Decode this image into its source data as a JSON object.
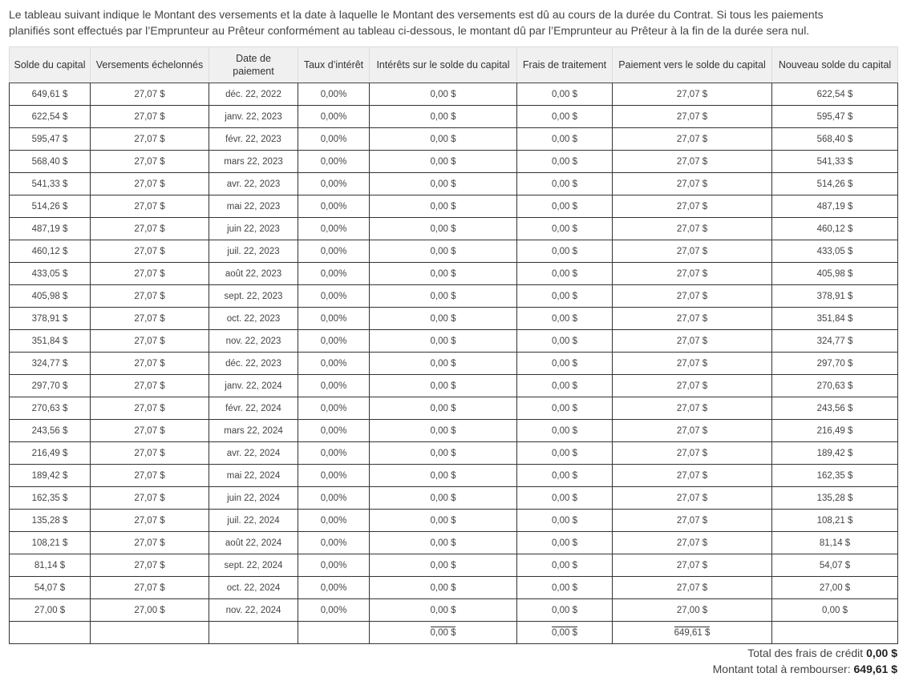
{
  "intro": {
    "line1": "Le tableau suivant indique le Montant des versements et la date à laquelle le Montant des versements est dû au cours de la durée du Contrat. Si tous les paiements",
    "line2": "planifiés sont effectués par l’Emprunteur au Prêteur conformément au tableau ci-dessous, le montant dû par l’Emprunteur au Prêteur à la fin de la durée sera nul."
  },
  "table": {
    "headers": [
      "Solde du capital",
      "Versements échelonnés",
      "Date de paiement",
      "Taux d’intérêt",
      "Intérêts sur le solde du capital",
      "Frais de traitement",
      "Paiement vers le solde du capital",
      "Nouveau solde du capital"
    ],
    "rows": [
      [
        "649,61 $",
        "27,07 $",
        "déc. 22, 2022",
        "0,00%",
        "0,00 $",
        "0,00 $",
        "27,07 $",
        "622,54 $"
      ],
      [
        "622,54 $",
        "27,07 $",
        "janv. 22, 2023",
        "0,00%",
        "0,00 $",
        "0,00 $",
        "27,07 $",
        "595,47 $"
      ],
      [
        "595,47 $",
        "27,07 $",
        "févr. 22, 2023",
        "0,00%",
        "0,00 $",
        "0,00 $",
        "27,07 $",
        "568,40 $"
      ],
      [
        "568,40 $",
        "27,07 $",
        "mars 22, 2023",
        "0,00%",
        "0,00 $",
        "0,00 $",
        "27,07 $",
        "541,33 $"
      ],
      [
        "541,33 $",
        "27,07 $",
        "avr. 22, 2023",
        "0,00%",
        "0,00 $",
        "0,00 $",
        "27,07 $",
        "514,26 $"
      ],
      [
        "514,26 $",
        "27,07 $",
        "mai 22, 2023",
        "0,00%",
        "0,00 $",
        "0,00 $",
        "27,07 $",
        "487,19 $"
      ],
      [
        "487,19 $",
        "27,07 $",
        "juin 22, 2023",
        "0,00%",
        "0,00 $",
        "0,00 $",
        "27,07 $",
        "460,12 $"
      ],
      [
        "460,12 $",
        "27,07 $",
        "juil. 22, 2023",
        "0,00%",
        "0,00 $",
        "0,00 $",
        "27,07 $",
        "433,05 $"
      ],
      [
        "433,05 $",
        "27,07 $",
        "août 22, 2023",
        "0,00%",
        "0,00 $",
        "0,00 $",
        "27,07 $",
        "405,98 $"
      ],
      [
        "405,98 $",
        "27,07 $",
        "sept. 22, 2023",
        "0,00%",
        "0,00 $",
        "0,00 $",
        "27,07 $",
        "378,91 $"
      ],
      [
        "378,91 $",
        "27,07 $",
        "oct. 22, 2023",
        "0,00%",
        "0,00 $",
        "0,00 $",
        "27,07 $",
        "351,84 $"
      ],
      [
        "351,84 $",
        "27,07 $",
        "nov. 22, 2023",
        "0,00%",
        "0,00 $",
        "0,00 $",
        "27,07 $",
        "324,77 $"
      ],
      [
        "324,77 $",
        "27,07 $",
        "déc. 22, 2023",
        "0,00%",
        "0,00 $",
        "0,00 $",
        "27,07 $",
        "297,70 $"
      ],
      [
        "297,70 $",
        "27,07 $",
        "janv. 22, 2024",
        "0,00%",
        "0,00 $",
        "0,00 $",
        "27,07 $",
        "270,63 $"
      ],
      [
        "270,63 $",
        "27,07 $",
        "févr. 22, 2024",
        "0,00%",
        "0,00 $",
        "0,00 $",
        "27,07 $",
        "243,56 $"
      ],
      [
        "243,56 $",
        "27,07 $",
        "mars 22, 2024",
        "0,00%",
        "0,00 $",
        "0,00 $",
        "27,07 $",
        "216,49 $"
      ],
      [
        "216,49 $",
        "27,07 $",
        "avr. 22, 2024",
        "0,00%",
        "0,00 $",
        "0,00 $",
        "27,07 $",
        "189,42 $"
      ],
      [
        "189,42 $",
        "27,07 $",
        "mai 22, 2024",
        "0,00%",
        "0,00 $",
        "0,00 $",
        "27,07 $",
        "162,35 $"
      ],
      [
        "162,35 $",
        "27,07 $",
        "juin 22, 2024",
        "0,00%",
        "0,00 $",
        "0,00 $",
        "27,07 $",
        "135,28 $"
      ],
      [
        "135,28 $",
        "27,07 $",
        "juil. 22, 2024",
        "0,00%",
        "0,00 $",
        "0,00 $",
        "27,07 $",
        "108,21 $"
      ],
      [
        "108,21 $",
        "27,07 $",
        "août 22, 2024",
        "0,00%",
        "0,00 $",
        "0,00 $",
        "27,07 $",
        "81,14 $"
      ],
      [
        "81,14 $",
        "27,07 $",
        "sept. 22, 2024",
        "0,00%",
        "0,00 $",
        "0,00 $",
        "27,07 $",
        "54,07 $"
      ],
      [
        "54,07 $",
        "27,07 $",
        "oct. 22, 2024",
        "0,00%",
        "0,00 $",
        "0,00 $",
        "27,07 $",
        "27,00 $"
      ],
      [
        "27,00 $",
        "27,00 $",
        "nov. 22, 2024",
        "0,00%",
        "0,00 $",
        "0,00 $",
        "27,00 $",
        "0,00 $"
      ]
    ],
    "totals": {
      "interest": "0,00 $",
      "fees": "0,00 $",
      "principal_paid": "649,61 $"
    }
  },
  "summary": {
    "credit_charges_label": "Total des frais de crédit",
    "credit_charges_value": "0,00 $",
    "total_repay_label": "Montant total à rembourser:",
    "total_repay_value": "649,61 $"
  }
}
